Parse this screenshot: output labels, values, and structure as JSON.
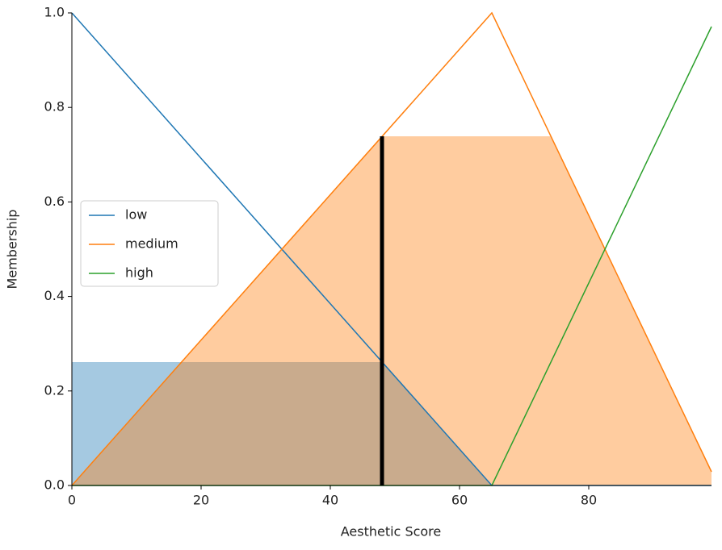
{
  "chart_data": {
    "type": "line",
    "xlabel": "Aesthetic Score",
    "ylabel": "Membership",
    "xlim": [
      0,
      99
    ],
    "ylim": [
      0,
      1
    ],
    "xticks": [
      0,
      20,
      40,
      60,
      80
    ],
    "yticks": [
      {
        "value": 0,
        "label": "0.0"
      },
      0.2,
      0.4,
      0.6,
      0.8,
      {
        "value": 1,
        "label": "1.0"
      }
    ],
    "legend": "center left",
    "series": [
      {
        "name": "low",
        "color": "#1f77b4",
        "x": [
          0,
          65,
          99
        ],
        "values": [
          1,
          0,
          0
        ]
      },
      {
        "name": "medium",
        "color": "#ff7f0e",
        "x": [
          0,
          65,
          99
        ],
        "values": [
          0,
          1,
          0.029
        ]
      },
      {
        "name": "high",
        "color": "#2ca02c",
        "x": [
          0,
          65,
          99
        ],
        "values": [
          0,
          0,
          0.971
        ]
      }
    ],
    "fills": [
      {
        "color": "#1f77b4",
        "x": [
          0,
          48,
          65
        ],
        "values": [
          0.261,
          0.261,
          0
        ]
      },
      {
        "color": "#ff7f0e",
        "x": [
          0,
          48,
          74.1,
          99
        ],
        "values": [
          0,
          0.739,
          0.739,
          0.029
        ]
      }
    ],
    "crisp": {
      "x": 48,
      "value": 0.739,
      "color": "#000000"
    }
  }
}
